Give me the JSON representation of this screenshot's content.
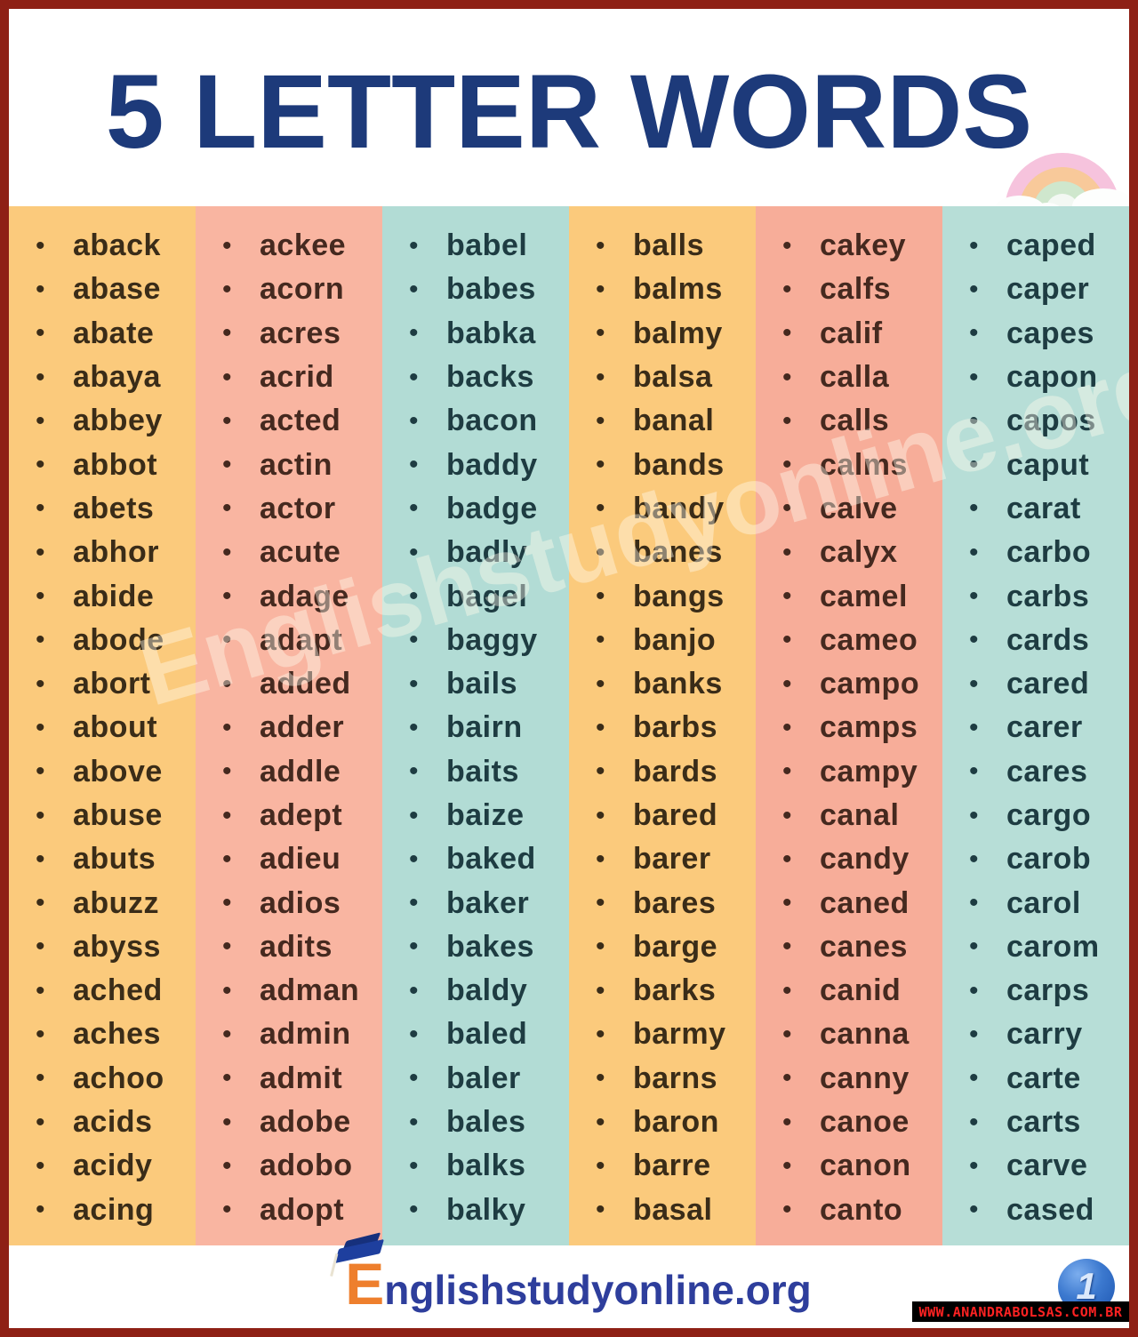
{
  "title": "5 LETTER WORDS",
  "watermark_text": "Englishstudyonline.org",
  "columns": [
    {
      "bg": "#fbca7c",
      "fg": "#3a2c18",
      "words": [
        "aback",
        "abase",
        "abate",
        "abaya",
        "abbey",
        "abbot",
        "abets",
        "abhor",
        "abide",
        "abode",
        "abort",
        "about",
        "above",
        "abuse",
        "abuts",
        "abuzz",
        "abyss",
        "ached",
        "aches",
        "achoo",
        "acids",
        "acidy",
        "acing"
      ]
    },
    {
      "bg": "#f9b5a1",
      "fg": "#45291f",
      "words": [
        "ackee",
        "acorn",
        "acres",
        "acrid",
        "acted",
        "actin",
        "actor",
        "acute",
        "adage",
        "adapt",
        "added",
        "adder",
        "addle",
        "adept",
        "adieu",
        "adios",
        "adits",
        "adman",
        "admin",
        "admit",
        "adobe",
        "adobo",
        "adopt"
      ]
    },
    {
      "bg": "#b2dcd5",
      "fg": "#1e3c42",
      "words": [
        "babel",
        "babes",
        "babka",
        "backs",
        "bacon",
        "baddy",
        "badge",
        "badly",
        "bagel",
        "baggy",
        "bails",
        "bairn",
        "baits",
        "baize",
        "baked",
        "baker",
        "bakes",
        "baldy",
        "baled",
        "baler",
        "bales",
        "balks",
        "balky"
      ]
    },
    {
      "bg": "#fbca7c",
      "fg": "#3a2c18",
      "words": [
        "balls",
        "balms",
        "balmy",
        "balsa",
        "banal",
        "bands",
        "bandy",
        "banes",
        "bangs",
        "banjo",
        "banks",
        "barbs",
        "bards",
        "bared",
        "barer",
        "bares",
        "barge",
        "barks",
        "barmy",
        "barns",
        "baron",
        "barre",
        "basal"
      ]
    },
    {
      "bg": "#f7ad99",
      "fg": "#45291f",
      "words": [
        "cakey",
        "calfs",
        "calif",
        "calla",
        "calls",
        "calms",
        "calve",
        "calyx",
        "camel",
        "cameo",
        "campo",
        "camps",
        "campy",
        "canal",
        "candy",
        "caned",
        "canes",
        "canid",
        "canna",
        "canny",
        "canoe",
        "canon",
        "canto"
      ]
    },
    {
      "bg": "#b7ded7",
      "fg": "#1e3c42",
      "words": [
        "caped",
        "caper",
        "capes",
        "capon",
        "capos",
        "caput",
        "carat",
        "carbo",
        "carbs",
        "cards",
        "cared",
        "carer",
        "cares",
        "cargo",
        "carob",
        "carol",
        "carom",
        "carps",
        "carry",
        "carte",
        "carts",
        "carve",
        "cased"
      ]
    }
  ],
  "footer": {
    "logo_initial": "E",
    "logo_rest": "nglishstudyonline",
    "logo_tld": ".org",
    "badge_number": "1",
    "watermark_bar": "WWW.ANANDRABOLSAS.COM.BR"
  },
  "colors": {
    "border": "#8e2015",
    "title": "#1d3a7a",
    "logo_blue": "#2e3e9c",
    "logo_orange": "#ee7f2d",
    "bar_bg": "#000000",
    "bar_text": "#ff2222",
    "badge_blue": "#1d55b0",
    "rainbow_pink": "#f6c3dd",
    "rainbow_orange": "#f8c99a",
    "rainbow_green": "#cfe7cd"
  }
}
